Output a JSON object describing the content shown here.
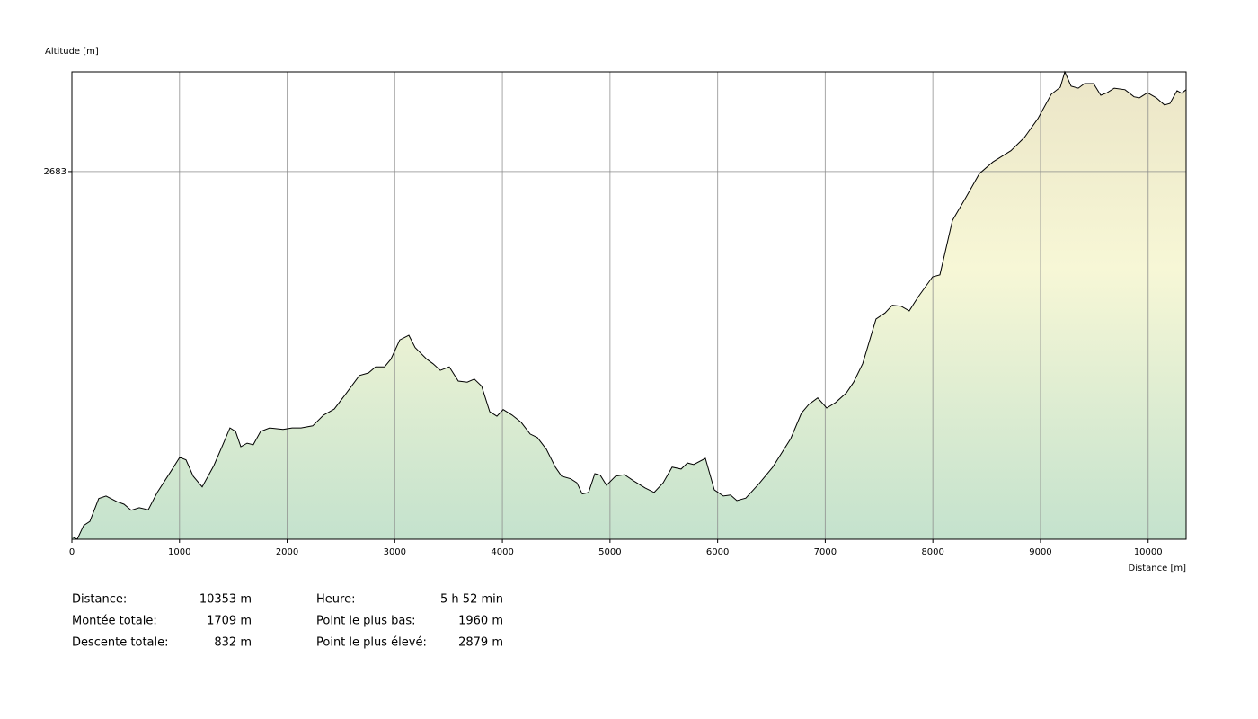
{
  "chart_data": {
    "type": "area",
    "y_label": "Altitude [m]",
    "x_label": "Distance [m]",
    "xlim": [
      0,
      10353
    ],
    "ylim": [
      1960,
      2879
    ],
    "xticks": [
      0,
      1000,
      2000,
      3000,
      4000,
      5000,
      6000,
      7000,
      8000,
      9000,
      10000
    ],
    "yticks": [
      2683
    ],
    "grid": true,
    "color": "#000000",
    "x": [
      0,
      50,
      109,
      167,
      250,
      317,
      417,
      484,
      551,
      626,
      710,
      793,
      918,
      1002,
      1060,
      1127,
      1211,
      1319,
      1403,
      1469,
      1520,
      1570,
      1628,
      1686,
      1753,
      1837,
      1962,
      2046,
      2129,
      2238,
      2338,
      2438,
      2546,
      2672,
      2755,
      2822,
      2905,
      2964,
      3047,
      3131,
      3189,
      3298,
      3356,
      3423,
      3507,
      3590,
      3674,
      3740,
      3807,
      3882,
      3949,
      4008,
      4091,
      4175,
      4258,
      4325,
      4408,
      4492,
      4550,
      4634,
      4692,
      4742,
      4801,
      4859,
      4909,
      4968,
      5051,
      5135,
      5218,
      5327,
      5410,
      5494,
      5577,
      5661,
      5719,
      5778,
      5886,
      5970,
      6053,
      6120,
      6178,
      6262,
      6387,
      6512,
      6679,
      6779,
      6846,
      6930,
      7013,
      7097,
      7197,
      7264,
      7347,
      7472,
      7556,
      7623,
      7706,
      7781,
      7865,
      7998,
      8065,
      8182,
      8307,
      8432,
      8558,
      8725,
      8850,
      8975,
      9100,
      9184,
      9226,
      9284,
      9351,
      9409,
      9493,
      9560,
      9618,
      9685,
      9785,
      9869,
      9919,
      9994,
      10077,
      10152,
      10203,
      10269,
      10311,
      10353
    ],
    "values": [
      1965,
      1960,
      1987,
      1995,
      2040,
      2045,
      2034,
      2029,
      2017,
      2022,
      2018,
      2052,
      2093,
      2121,
      2116,
      2084,
      2063,
      2105,
      2146,
      2179,
      2172,
      2142,
      2149,
      2146,
      2172,
      2179,
      2176,
      2179,
      2179,
      2183,
      2204,
      2216,
      2246,
      2282,
      2287,
      2299,
      2299,
      2314,
      2352,
      2361,
      2337,
      2314,
      2305,
      2292,
      2299,
      2271,
      2269,
      2275,
      2261,
      2211,
      2202,
      2215,
      2204,
      2190,
      2167,
      2160,
      2137,
      2102,
      2084,
      2079,
      2071,
      2049,
      2052,
      2089,
      2086,
      2066,
      2084,
      2087,
      2075,
      2061,
      2052,
      2071,
      2102,
      2098,
      2110,
      2107,
      2119,
      2057,
      2045,
      2047,
      2036,
      2041,
      2070,
      2102,
      2158,
      2208,
      2225,
      2238,
      2218,
      2229,
      2248,
      2269,
      2305,
      2393,
      2405,
      2420,
      2418,
      2409,
      2437,
      2476,
      2480,
      2587,
      2632,
      2679,
      2702,
      2724,
      2750,
      2787,
      2835,
      2849,
      2879,
      2851,
      2847,
      2856,
      2856,
      2833,
      2838,
      2847,
      2844,
      2830,
      2828,
      2838,
      2828,
      2814,
      2817,
      2842,
      2837,
      2844
    ]
  },
  "stats": [
    [
      {
        "label": "Distance:",
        "value": "10353 m"
      },
      {
        "label": "Heure:",
        "value": "5 h 52 min"
      }
    ],
    [
      {
        "label": "Montée totale:",
        "value": "1709 m"
      },
      {
        "label": "Point le plus bas:",
        "value": "1960 m"
      }
    ],
    [
      {
        "label": "Descente totale:",
        "value": "832 m"
      },
      {
        "label": "Point le plus élevé:",
        "value": "2879 m"
      }
    ]
  ]
}
